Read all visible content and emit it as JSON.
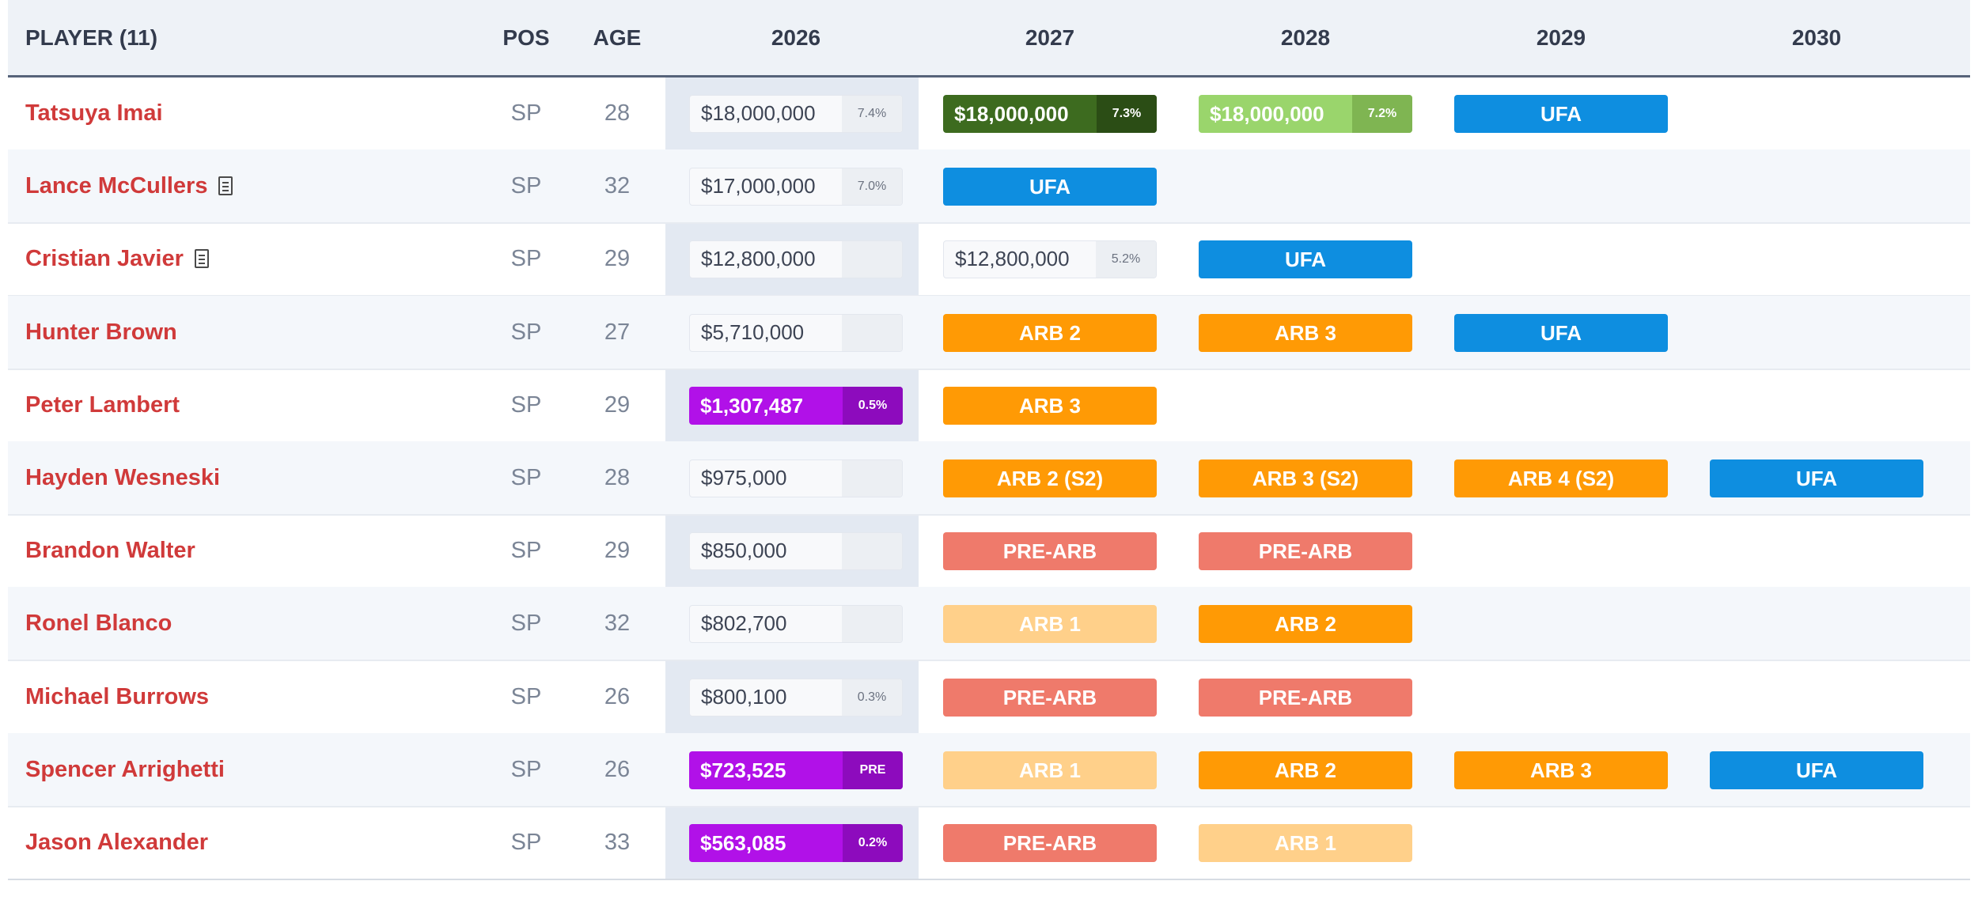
{
  "header": {
    "player": "PLAYER (11)",
    "pos": "POS",
    "age": "AGE",
    "years": [
      "2026",
      "2027",
      "2028",
      "2029",
      "2030"
    ]
  },
  "rows": [
    {
      "name": "Tatsuya Imai",
      "pos": "SP",
      "age": "28",
      "has_doc_icon": false,
      "cells": [
        {
          "kind": "pill",
          "style": "white",
          "amount": "$18,000,000",
          "pct": "7.4%"
        },
        {
          "kind": "pill",
          "style": "dkgreen",
          "amount": "$18,000,000",
          "pct": "7.3%"
        },
        {
          "kind": "pill",
          "style": "ltgreen",
          "amount": "$18,000,000",
          "pct": "7.2%"
        },
        {
          "kind": "badge",
          "style": "ufa",
          "label": "UFA"
        },
        null
      ]
    },
    {
      "name": "Lance McCullers",
      "pos": "SP",
      "age": "32",
      "has_doc_icon": true,
      "cells": [
        {
          "kind": "pill",
          "style": "white",
          "amount": "$17,000,000",
          "pct": "7.0%"
        },
        {
          "kind": "badge",
          "style": "ufa",
          "label": "UFA"
        },
        null,
        null,
        null
      ]
    },
    {
      "name": "Cristian Javier",
      "pos": "SP",
      "age": "29",
      "has_doc_icon": true,
      "cells": [
        {
          "kind": "pill",
          "style": "white",
          "amount": "$12,800,000",
          "pct": ""
        },
        {
          "kind": "pill",
          "style": "white",
          "amount": "$12,800,000",
          "pct": "5.2%"
        },
        {
          "kind": "badge",
          "style": "ufa",
          "label": "UFA"
        },
        null,
        null
      ]
    },
    {
      "name": "Hunter Brown",
      "pos": "SP",
      "age": "27",
      "has_doc_icon": false,
      "cells": [
        {
          "kind": "pill",
          "style": "white",
          "amount": "$5,710,000",
          "pct": ""
        },
        {
          "kind": "badge",
          "style": "arb",
          "label": "ARB 2"
        },
        {
          "kind": "badge",
          "style": "arb",
          "label": "ARB 3"
        },
        {
          "kind": "badge",
          "style": "ufa",
          "label": "UFA"
        },
        null
      ]
    },
    {
      "name": "Peter Lambert",
      "pos": "SP",
      "age": "29",
      "has_doc_icon": false,
      "cells": [
        {
          "kind": "pill",
          "style": "purple",
          "amount": "$1,307,487",
          "pct": "0.5%"
        },
        {
          "kind": "badge",
          "style": "arb",
          "label": "ARB 3"
        },
        null,
        null,
        null
      ]
    },
    {
      "name": "Hayden Wesneski",
      "pos": "SP",
      "age": "28",
      "has_doc_icon": false,
      "cells": [
        {
          "kind": "pill",
          "style": "white",
          "amount": "$975,000",
          "pct": ""
        },
        {
          "kind": "badge",
          "style": "arb",
          "label": "ARB 2 (S2)"
        },
        {
          "kind": "badge",
          "style": "arb",
          "label": "ARB 3 (S2)"
        },
        {
          "kind": "badge",
          "style": "arb",
          "label": "ARB 4 (S2)"
        },
        {
          "kind": "badge",
          "style": "ufa",
          "label": "UFA"
        }
      ]
    },
    {
      "name": "Brandon Walter",
      "pos": "SP",
      "age": "29",
      "has_doc_icon": false,
      "cells": [
        {
          "kind": "pill",
          "style": "white",
          "amount": "$850,000",
          "pct": ""
        },
        {
          "kind": "badge",
          "style": "pre",
          "label": "PRE-ARB"
        },
        {
          "kind": "badge",
          "style": "pre",
          "label": "PRE-ARB"
        },
        null,
        null
      ]
    },
    {
      "name": "Ronel Blanco",
      "pos": "SP",
      "age": "32",
      "has_doc_icon": false,
      "cells": [
        {
          "kind": "pill",
          "style": "white",
          "amount": "$802,700",
          "pct": ""
        },
        {
          "kind": "badge",
          "style": "arbl",
          "label": "ARB 1"
        },
        {
          "kind": "badge",
          "style": "arb",
          "label": "ARB 2"
        },
        null,
        null
      ]
    },
    {
      "name": "Michael Burrows",
      "pos": "SP",
      "age": "26",
      "has_doc_icon": false,
      "cells": [
        {
          "kind": "pill",
          "style": "white",
          "amount": "$800,100",
          "pct": "0.3%"
        },
        {
          "kind": "badge",
          "style": "pre",
          "label": "PRE-ARB"
        },
        {
          "kind": "badge",
          "style": "pre",
          "label": "PRE-ARB"
        },
        null,
        null
      ]
    },
    {
      "name": "Spencer Arrighetti",
      "pos": "SP",
      "age": "26",
      "has_doc_icon": false,
      "cells": [
        {
          "kind": "pill",
          "style": "purple",
          "amount": "$723,525",
          "pct": "PRE"
        },
        {
          "kind": "badge",
          "style": "arbl",
          "label": "ARB 1"
        },
        {
          "kind": "badge",
          "style": "arb",
          "label": "ARB 2"
        },
        {
          "kind": "badge",
          "style": "arb",
          "label": "ARB 3"
        },
        {
          "kind": "badge",
          "style": "ufa",
          "label": "UFA"
        }
      ]
    },
    {
      "name": "Jason Alexander",
      "pos": "SP",
      "age": "33",
      "has_doc_icon": false,
      "cells": [
        {
          "kind": "pill",
          "style": "purple",
          "amount": "$563,085",
          "pct": "0.2%"
        },
        {
          "kind": "badge",
          "style": "pre",
          "label": "PRE-ARB"
        },
        {
          "kind": "badge",
          "style": "arbl",
          "label": "ARB 1"
        },
        null,
        null
      ]
    }
  ],
  "colors": {
    "ufa": "#0e8ee0",
    "arb": "#ff9a05",
    "arb_light": "#ffd08a",
    "pre_arb": "#ef7a6b",
    "purple": "#b111e8",
    "dark_green": "#3d6b1f",
    "light_green": "#9ad56c",
    "player_name": "#d03a3a"
  }
}
